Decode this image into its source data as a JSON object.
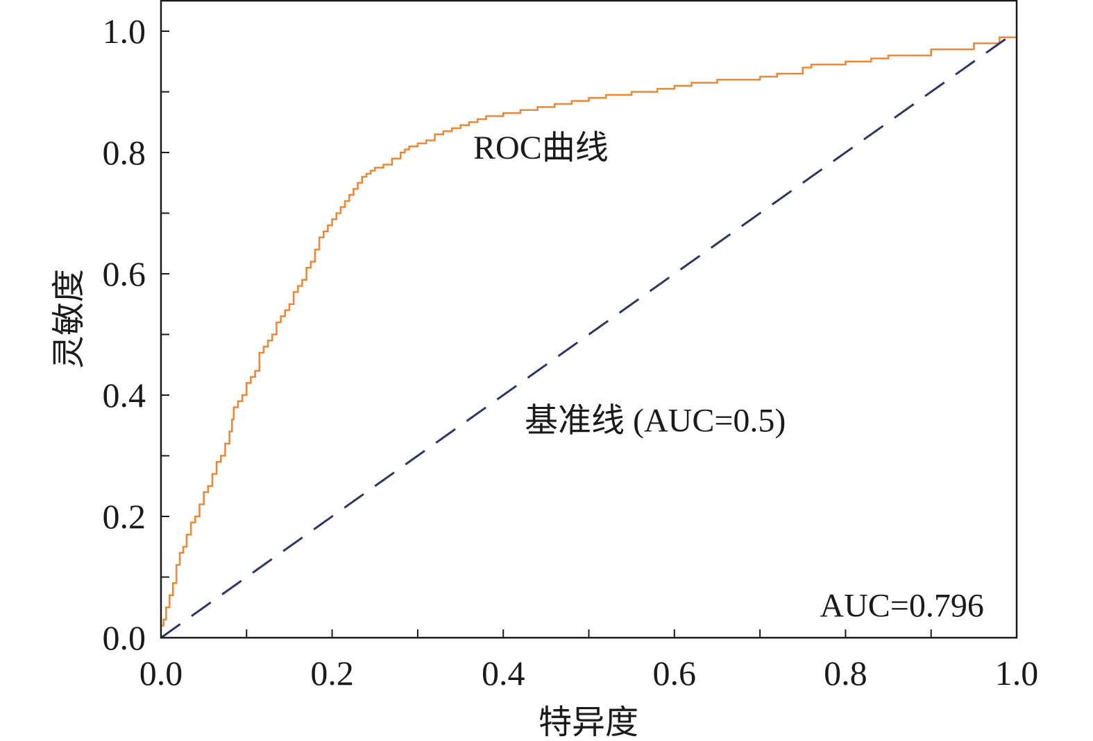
{
  "chart_data": {
    "type": "line",
    "title": "",
    "xlabel": "特异度",
    "ylabel": "灵敏度",
    "xlim": [
      0,
      1
    ],
    "ylim": [
      0,
      1
    ],
    "x_ticks": [
      "0.0",
      "0.2",
      "0.4",
      "0.6",
      "0.8",
      "1.0"
    ],
    "y_ticks": [
      "0.0",
      "0.2",
      "0.4",
      "0.6",
      "0.8",
      "1.0"
    ],
    "grid": false,
    "legend": "none",
    "series": [
      {
        "name": "ROC曲线",
        "color": "#e8893a",
        "style": "step",
        "x": [
          0.0,
          0.003,
          0.006,
          0.01,
          0.014,
          0.018,
          0.022,
          0.026,
          0.03,
          0.035,
          0.04,
          0.045,
          0.05,
          0.055,
          0.06,
          0.065,
          0.07,
          0.075,
          0.08,
          0.083,
          0.085,
          0.09,
          0.095,
          0.1,
          0.105,
          0.11,
          0.115,
          0.12,
          0.125,
          0.13,
          0.135,
          0.14,
          0.145,
          0.15,
          0.155,
          0.16,
          0.165,
          0.17,
          0.175,
          0.18,
          0.185,
          0.19,
          0.195,
          0.2,
          0.205,
          0.21,
          0.215,
          0.22,
          0.225,
          0.23,
          0.235,
          0.24,
          0.245,
          0.25,
          0.26,
          0.27,
          0.28,
          0.285,
          0.29,
          0.3,
          0.31,
          0.32,
          0.33,
          0.34,
          0.35,
          0.36,
          0.37,
          0.38,
          0.4,
          0.42,
          0.44,
          0.46,
          0.48,
          0.5,
          0.52,
          0.55,
          0.58,
          0.6,
          0.62,
          0.65,
          0.7,
          0.72,
          0.75,
          0.76,
          0.8,
          0.83,
          0.85,
          0.9,
          0.95,
          0.98,
          1.0
        ],
        "y": [
          0.02,
          0.03,
          0.05,
          0.07,
          0.09,
          0.12,
          0.14,
          0.15,
          0.17,
          0.19,
          0.2,
          0.22,
          0.24,
          0.25,
          0.27,
          0.29,
          0.3,
          0.32,
          0.34,
          0.36,
          0.38,
          0.39,
          0.4,
          0.42,
          0.43,
          0.44,
          0.47,
          0.48,
          0.49,
          0.5,
          0.52,
          0.53,
          0.54,
          0.55,
          0.57,
          0.58,
          0.59,
          0.61,
          0.62,
          0.64,
          0.66,
          0.67,
          0.68,
          0.69,
          0.7,
          0.71,
          0.72,
          0.73,
          0.74,
          0.75,
          0.76,
          0.765,
          0.77,
          0.775,
          0.78,
          0.79,
          0.8,
          0.805,
          0.81,
          0.815,
          0.82,
          0.83,
          0.835,
          0.84,
          0.845,
          0.85,
          0.855,
          0.86,
          0.865,
          0.87,
          0.875,
          0.88,
          0.885,
          0.89,
          0.895,
          0.9,
          0.905,
          0.91,
          0.915,
          0.92,
          0.925,
          0.93,
          0.94,
          0.945,
          0.95,
          0.955,
          0.96,
          0.97,
          0.98,
          0.99,
          1.0
        ]
      },
      {
        "name": "基准线 (AUC=0.5)",
        "color": "#2e3560",
        "style": "dashed",
        "x": [
          0,
          1
        ],
        "y": [
          0,
          1
        ]
      }
    ],
    "annotations": [
      {
        "text": "ROC曲线",
        "x": 0.365,
        "y": 0.79
      },
      {
        "text": "基准线 (AUC=0.5)",
        "x": 0.425,
        "y": 0.34
      },
      {
        "text": "AUC=0.796",
        "x": 0.77,
        "y": 0.035
      }
    ]
  }
}
